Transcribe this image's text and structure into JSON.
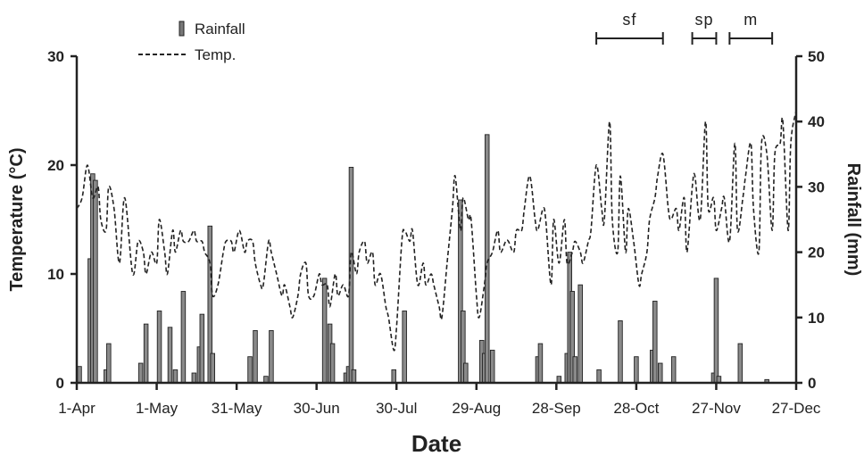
{
  "chart_data": {
    "type": "bar+line",
    "xlabel": "Date",
    "ylabel_left": "Temperature (°C)",
    "ylabel_right": "Rainfall (mm)",
    "x_range_days": [
      0,
      270
    ],
    "x_ticks": [
      {
        "label": "1-Apr",
        "day": 0
      },
      {
        "label": "1-May",
        "day": 30
      },
      {
        "label": "31-May",
        "day": 60
      },
      {
        "label": "30-Jun",
        "day": 90
      },
      {
        "label": "30-Jul",
        "day": 120
      },
      {
        "label": "29-Aug",
        "day": 150
      },
      {
        "label": "28-Sep",
        "day": 180
      },
      {
        "label": "28-Oct",
        "day": 210
      },
      {
        "label": "27-Nov",
        "day": 240
      },
      {
        "label": "27-Dec",
        "day": 270
      }
    ],
    "y_left": {
      "range": [
        0,
        30
      ],
      "ticks": [
        "0",
        "10",
        "20",
        "30"
      ]
    },
    "y_right": {
      "range": [
        0,
        50
      ],
      "ticks": [
        "0",
        "10",
        "20",
        "30",
        "40",
        "50"
      ]
    },
    "legend": [
      {
        "name": "Rainfall",
        "style": "bar"
      },
      {
        "name": "Temp.",
        "style": "dashed-line"
      }
    ],
    "periods": [
      {
        "label": "sf",
        "start_day": 195,
        "end_day": 220
      },
      {
        "label": "sp",
        "start_day": 231,
        "end_day": 240
      },
      {
        "label": "m",
        "start_day": 245,
        "end_day": 261
      }
    ],
    "rainfall_series": {
      "name": "Rainfall",
      "unit": "mm",
      "points": [
        [
          1,
          2.5
        ],
        [
          5,
          19
        ],
        [
          6,
          32
        ],
        [
          7,
          31
        ],
        [
          11,
          2
        ],
        [
          12,
          6
        ],
        [
          24,
          3
        ],
        [
          26,
          9
        ],
        [
          31,
          11
        ],
        [
          35,
          8.5
        ],
        [
          37,
          2
        ],
        [
          40,
          14
        ],
        [
          44,
          1.5
        ],
        [
          46,
          5.5
        ],
        [
          47,
          10.5
        ],
        [
          50,
          24
        ],
        [
          51,
          4.5
        ],
        [
          65,
          4
        ],
        [
          67,
          8
        ],
        [
          71,
          1
        ],
        [
          73,
          8
        ],
        [
          93,
          16
        ],
        [
          95,
          9
        ],
        [
          96,
          6
        ],
        [
          101,
          1.5
        ],
        [
          102,
          2.5
        ],
        [
          103,
          33
        ],
        [
          104,
          2
        ],
        [
          119,
          2
        ],
        [
          123,
          11
        ],
        [
          144,
          28
        ],
        [
          145,
          11
        ],
        [
          146,
          3
        ],
        [
          152,
          6.5
        ],
        [
          153,
          4.5
        ],
        [
          154,
          38
        ],
        [
          156,
          5
        ],
        [
          173,
          4
        ],
        [
          174,
          6
        ],
        [
          181,
          1
        ],
        [
          184,
          4.5
        ],
        [
          185,
          20
        ],
        [
          186,
          14
        ],
        [
          187,
          4
        ],
        [
          189,
          15
        ],
        [
          196,
          2
        ],
        [
          204,
          9.5
        ],
        [
          210,
          4
        ],
        [
          216,
          5
        ],
        [
          217,
          12.5
        ],
        [
          219,
          3
        ],
        [
          224,
          4
        ],
        [
          239,
          1.5
        ],
        [
          240,
          16
        ],
        [
          241,
          1
        ],
        [
          249,
          6
        ],
        [
          259,
          0.5
        ]
      ]
    },
    "temperature_series": {
      "name": "Temp.",
      "unit": "°C",
      "x_day": [
        0,
        2,
        4,
        6,
        8,
        9,
        11,
        12,
        14,
        16,
        18,
        21,
        23,
        25,
        26,
        28,
        30,
        31,
        33,
        34,
        36,
        37,
        39,
        40,
        42,
        44,
        45,
        47,
        48,
        50,
        51,
        53,
        55,
        56,
        58,
        59,
        61,
        63,
        64,
        66,
        67,
        69,
        70,
        72,
        73,
        75,
        77,
        78,
        80,
        81,
        83,
        84,
        86,
        87,
        89,
        91,
        92,
        94,
        95,
        97,
        98,
        100,
        102,
        103,
        105,
        106,
        108,
        109,
        111,
        112,
        114,
        116,
        117,
        119,
        120,
        122,
        123,
        125,
        126,
        128,
        130,
        131,
        133,
        134,
        136,
        137,
        139,
        141,
        142,
        144,
        145,
        147,
        148,
        150,
        151,
        153,
        154,
        156,
        158,
        159,
        161,
        162,
        164,
        165,
        167,
        168,
        170,
        172,
        173,
        175,
        176,
        178,
        179,
        181,
        183,
        184,
        186,
        187,
        189,
        190,
        192,
        193,
        195,
        197,
        198,
        200,
        201,
        203,
        204,
        206,
        207,
        209,
        211,
        212,
        214,
        215,
        217,
        218,
        220,
        222,
        223,
        225,
        226,
        228,
        229,
        231,
        232,
        234,
        236,
        237,
        239,
        240,
        242,
        243,
        245,
        247,
        248,
        250,
        251,
        253,
        254,
        256,
        257,
        259,
        261,
        262,
        264,
        265,
        267,
        268,
        270
      ],
      "y": [
        16,
        17,
        20,
        17,
        18,
        15,
        14,
        18,
        16,
        11,
        17,
        10,
        13,
        12,
        10,
        12,
        11,
        15,
        12,
        10,
        14,
        12,
        14,
        13,
        13,
        14,
        13,
        13,
        12,
        11,
        8,
        9,
        12,
        13,
        13,
        12,
        14,
        12,
        13,
        13,
        11,
        9,
        9,
        13,
        12,
        10,
        8,
        9,
        7,
        6,
        8,
        10,
        11,
        8,
        8,
        10,
        9,
        9,
        7,
        10,
        8,
        9,
        8,
        12,
        10,
        12,
        13,
        11,
        12,
        9,
        10,
        7,
        6,
        3,
        5,
        13,
        14,
        13,
        14,
        9,
        11,
        9,
        10,
        9,
        7,
        6,
        11,
        16,
        19,
        14,
        17,
        15,
        15,
        8,
        6,
        9,
        11,
        12,
        14,
        12,
        13,
        13,
        12,
        14,
        14,
        16,
        19,
        15,
        14,
        16,
        15,
        9,
        15,
        11,
        15,
        11,
        12,
        13,
        12,
        11,
        13,
        14,
        20,
        16,
        15,
        24,
        15,
        12,
        19,
        12,
        16,
        13,
        9,
        10,
        12,
        15,
        17,
        19,
        21,
        16,
        15,
        16,
        14,
        17,
        12,
        18,
        19,
        15,
        24,
        16,
        17,
        14,
        16,
        17,
        13,
        22,
        14,
        17,
        19,
        22,
        16,
        12,
        22,
        21,
        14,
        21,
        22,
        24,
        14,
        22,
        25
      ]
    }
  }
}
